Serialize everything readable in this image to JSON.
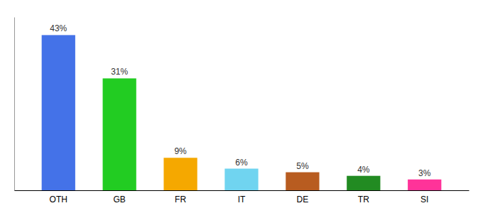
{
  "chart_data": {
    "type": "bar",
    "categories": [
      "OTH",
      "GB",
      "FR",
      "IT",
      "DE",
      "TR",
      "SI"
    ],
    "values": [
      43,
      31,
      9,
      6,
      5,
      4,
      3
    ],
    "value_labels": [
      "43%",
      "31%",
      "9%",
      "6%",
      "5%",
      "4%",
      "3%"
    ],
    "colors": [
      "#4472e8",
      "#22cc22",
      "#f5a800",
      "#70d4f0",
      "#b85c20",
      "#228b22",
      "#ff3399"
    ],
    "ylim": [
      0,
      48
    ],
    "data_labels": true,
    "tick_labels": "x"
  }
}
